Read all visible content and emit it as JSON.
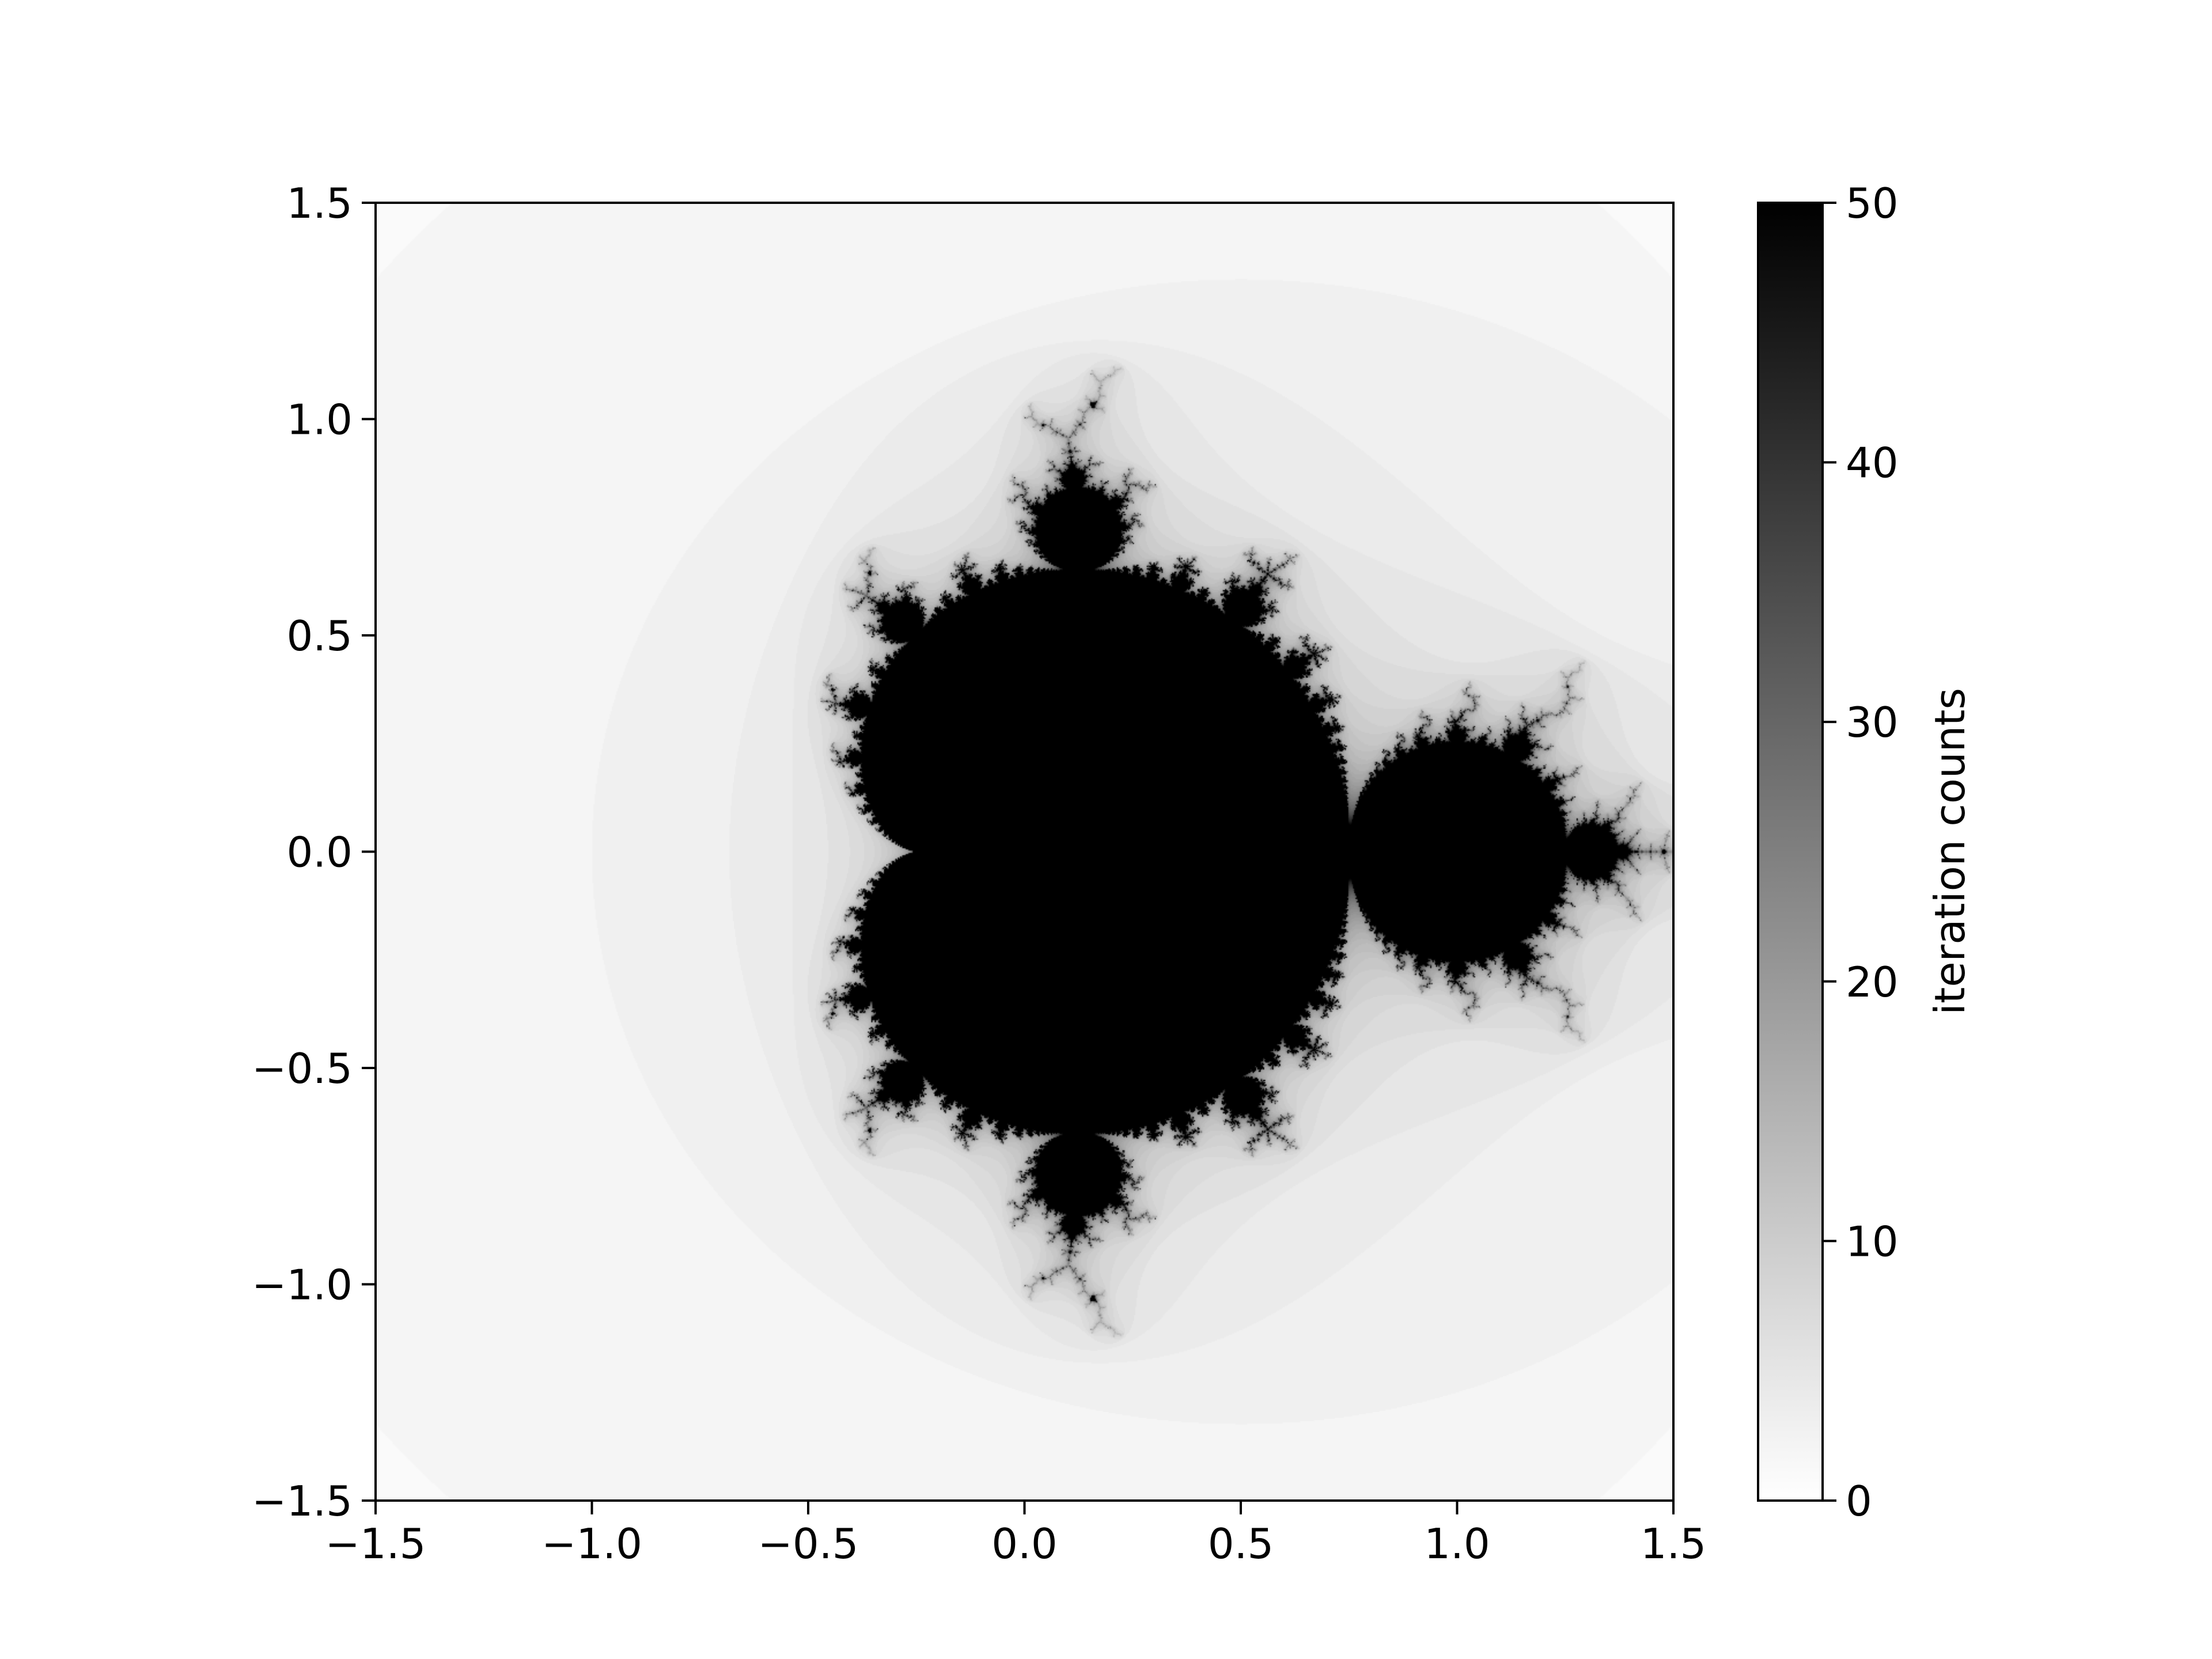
{
  "chart_data": {
    "type": "heatmap",
    "title": "",
    "xlabel": "",
    "ylabel": "",
    "xlim": [
      -1.5,
      1.5
    ],
    "ylim": [
      -1.5,
      1.5
    ],
    "x_ticks": [
      "−1.5",
      "−1.0",
      "−0.5",
      "0.0",
      "0.5",
      "1.0",
      "1.5"
    ],
    "y_ticks": [
      "−1.5",
      "−1.0",
      "−0.5",
      "0.0",
      "0.5",
      "1.0",
      "1.5"
    ],
    "x_tick_values": [
      -1.5,
      -1.0,
      -0.5,
      0.0,
      0.5,
      1.0,
      1.5
    ],
    "y_tick_values": [
      -1.5,
      -1.0,
      -0.5,
      0.0,
      0.5,
      1.0,
      1.5
    ],
    "grid": false,
    "colormap": "gray_r",
    "colorbar": {
      "label": "iteration counts",
      "range": [
        0,
        50
      ],
      "ticks": [
        "0",
        "10",
        "20",
        "30",
        "40",
        "50"
      ],
      "tick_values": [
        0,
        10,
        20,
        30,
        40,
        50
      ],
      "low_color": "#ffffff",
      "high_color": "#000000"
    },
    "field": {
      "function": "iterations of z -> z^2 + c, with c = -(x + i y) + 0.5 ... rendered as mirrored Mandelbrot set",
      "max_iterations": 50
    }
  }
}
